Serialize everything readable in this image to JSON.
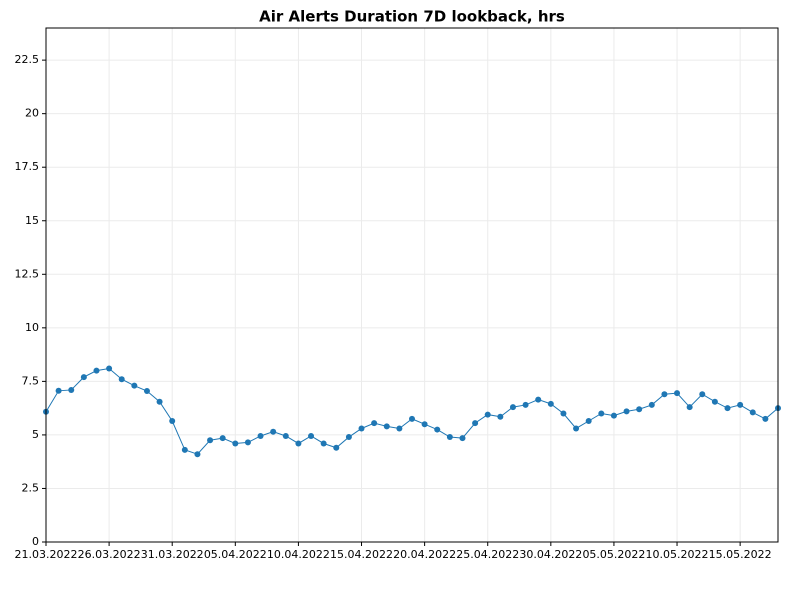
{
  "chart_data": {
    "type": "line",
    "title": "Air Alerts Duration 7D lookback, hrs",
    "x": [
      "21.03.2022",
      "22.03.2022",
      "23.03.2022",
      "24.03.2022",
      "25.03.2022",
      "26.03.2022",
      "27.03.2022",
      "28.03.2022",
      "29.03.2022",
      "30.03.2022",
      "31.03.2022",
      "01.04.2022",
      "02.04.2022",
      "03.04.2022",
      "04.04.2022",
      "05.04.2022",
      "06.04.2022",
      "07.04.2022",
      "08.04.2022",
      "09.04.2022",
      "10.04.2022",
      "11.04.2022",
      "12.04.2022",
      "13.04.2022",
      "14.04.2022",
      "15.04.2022",
      "16.04.2022",
      "17.04.2022",
      "18.04.2022",
      "19.04.2022",
      "20.04.2022",
      "21.04.2022",
      "22.04.2022",
      "23.04.2022",
      "24.04.2022",
      "25.04.2022",
      "26.04.2022",
      "27.04.2022",
      "28.04.2022",
      "29.04.2022",
      "30.04.2022",
      "01.05.2022",
      "02.05.2022",
      "03.05.2022",
      "04.05.2022",
      "05.05.2022",
      "06.05.2022",
      "07.05.2022",
      "08.05.2022",
      "09.05.2022",
      "10.05.2022",
      "11.05.2022",
      "12.05.2022",
      "13.05.2022",
      "14.05.2022",
      "15.05.2022",
      "16.05.2022",
      "17.05.2022",
      "18.05.2022"
    ],
    "series": [
      {
        "name": "Air Alerts Duration",
        "color": "#1f77b4",
        "values": [
          6.08,
          7.06,
          7.1,
          7.7,
          8.0,
          8.1,
          7.6,
          7.3,
          7.05,
          6.55,
          5.65,
          4.3,
          4.1,
          4.75,
          4.85,
          4.6,
          4.65,
          4.95,
          5.15,
          4.95,
          4.6,
          4.95,
          4.6,
          4.4,
          4.9,
          5.3,
          5.55,
          5.4,
          5.3,
          5.75,
          5.5,
          5.25,
          4.9,
          4.85,
          5.55,
          5.95,
          5.85,
          6.3,
          6.4,
          6.65,
          6.45,
          6.0,
          5.3,
          5.65,
          6.0,
          5.9,
          6.1,
          6.2,
          6.4,
          6.9,
          6.95,
          6.3,
          6.9,
          6.55,
          6.25,
          6.4,
          6.05,
          5.75,
          6.25
        ]
      }
    ],
    "xlim": [
      "21.03.2022",
      "18.05.2022"
    ],
    "xticks": [
      "21.03.2022",
      "26.03.2022",
      "31.03.2022",
      "05.04.2022",
      "10.04.2022",
      "15.04.2022",
      "20.04.2022",
      "25.04.2022",
      "30.04.2022",
      "05.05.2022",
      "10.05.2022",
      "15.05.2022"
    ],
    "ylim": [
      0,
      24
    ],
    "yticks": [
      0,
      2.5,
      5,
      7.5,
      10,
      12.5,
      15,
      17.5,
      20,
      22.5
    ],
    "grid": true
  }
}
